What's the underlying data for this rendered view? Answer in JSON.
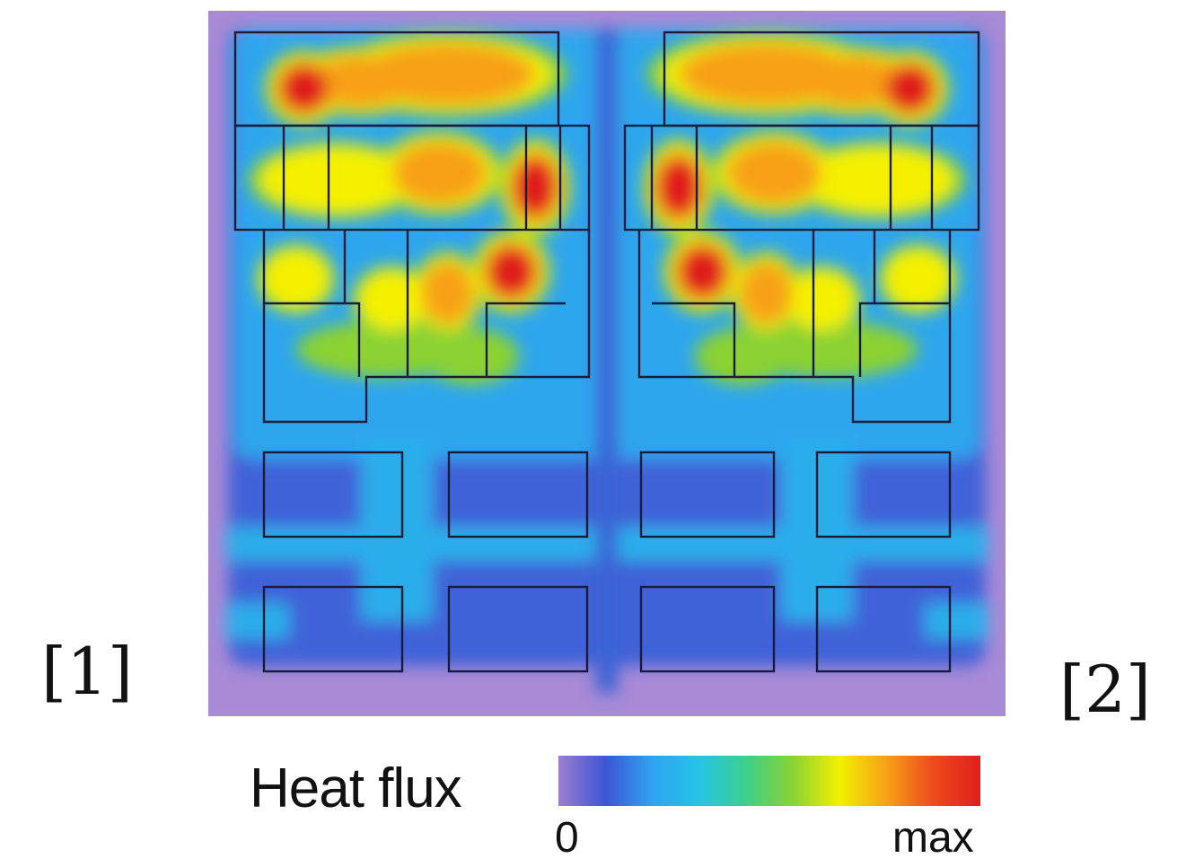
{
  "panel_labels": {
    "left": "[1]",
    "right": "[2]"
  },
  "chart_data": {
    "type": "heatmap",
    "legend": {
      "title": "Heat flux",
      "min_label": "0",
      "max_label": "max"
    },
    "colorscale": [
      "#9b7fcf",
      "#3d55d6",
      "#2ea4f0",
      "#27c3e6",
      "#3bd08a",
      "#8bd232",
      "#f4f000",
      "#f7a018",
      "#ee4a1c",
      "#e01f1f"
    ],
    "background_color": "#a98ad6",
    "symmetry": "left-right mirror",
    "hotspots_left_half": [
      {
        "cx": 0.12,
        "cy": 0.11,
        "rx": 0.05,
        "ry": 0.055,
        "v": 0.95
      },
      {
        "cx": 0.19,
        "cy": 0.1,
        "rx": 0.09,
        "ry": 0.05,
        "v": 0.75
      },
      {
        "cx": 0.3,
        "cy": 0.09,
        "rx": 0.15,
        "ry": 0.06,
        "v": 0.88
      },
      {
        "cx": 0.16,
        "cy": 0.24,
        "rx": 0.11,
        "ry": 0.055,
        "v": 0.7
      },
      {
        "cx": 0.29,
        "cy": 0.23,
        "rx": 0.08,
        "ry": 0.06,
        "v": 0.85
      },
      {
        "cx": 0.41,
        "cy": 0.25,
        "rx": 0.045,
        "ry": 0.07,
        "v": 0.98
      },
      {
        "cx": 0.11,
        "cy": 0.38,
        "rx": 0.05,
        "ry": 0.05,
        "v": 0.62
      },
      {
        "cx": 0.23,
        "cy": 0.41,
        "rx": 0.05,
        "ry": 0.05,
        "v": 0.72
      },
      {
        "cx": 0.3,
        "cy": 0.4,
        "rx": 0.045,
        "ry": 0.06,
        "v": 0.8
      },
      {
        "cx": 0.38,
        "cy": 0.37,
        "rx": 0.05,
        "ry": 0.06,
        "v": 0.9
      },
      {
        "cx": 0.22,
        "cy": 0.48,
        "rx": 0.11,
        "ry": 0.04,
        "v": 0.55
      },
      {
        "cx": 0.33,
        "cy": 0.49,
        "rx": 0.06,
        "ry": 0.04,
        "v": 0.58
      },
      {
        "cx": 0.1,
        "cy": 0.58,
        "rx": 0.07,
        "ry": 0.06,
        "v": 0.3
      },
      {
        "cx": 0.2,
        "cy": 0.7,
        "rx": 0.06,
        "ry": 0.08,
        "v": 0.28
      },
      {
        "cx": 0.24,
        "cy": 0.63,
        "rx": 0.12,
        "ry": 0.03,
        "v": 0.3
      },
      {
        "cx": 0.1,
        "cy": 0.85,
        "rx": 0.06,
        "ry": 0.03,
        "v": 0.28
      }
    ]
  }
}
